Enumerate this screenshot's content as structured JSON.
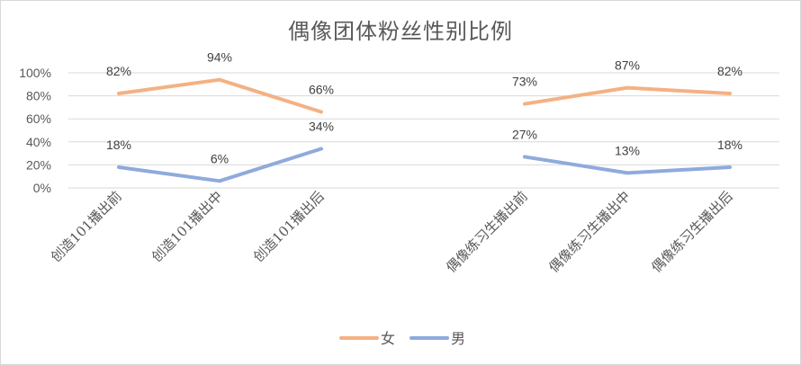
{
  "chart_data": {
    "type": "line",
    "title": "偶像团体粉丝性别比例",
    "categories": [
      "创造101播出前",
      "创造101播出中",
      "创造101播出后",
      "偶像练习生播出前",
      "偶像练习生播出中",
      "偶像练习生播出后"
    ],
    "series": [
      {
        "name": "女",
        "color": "#F4B183",
        "values": [
          82,
          94,
          66,
          73,
          87,
          82
        ],
        "labels": [
          "82%",
          "94%",
          "66%",
          "73%",
          "87%",
          "82%"
        ]
      },
      {
        "name": "男",
        "color": "#8FAADC",
        "values": [
          18,
          6,
          34,
          27,
          13,
          18
        ],
        "labels": [
          "18%",
          "6%",
          "34%",
          "27%",
          "13%",
          "18%"
        ]
      }
    ],
    "gaps_between": [
      2
    ],
    "ylim": [
      0,
      100
    ],
    "yticks": [
      "0%",
      "20%",
      "40%",
      "60%",
      "80%",
      "100%"
    ],
    "grid": true,
    "legend": "bottom"
  }
}
